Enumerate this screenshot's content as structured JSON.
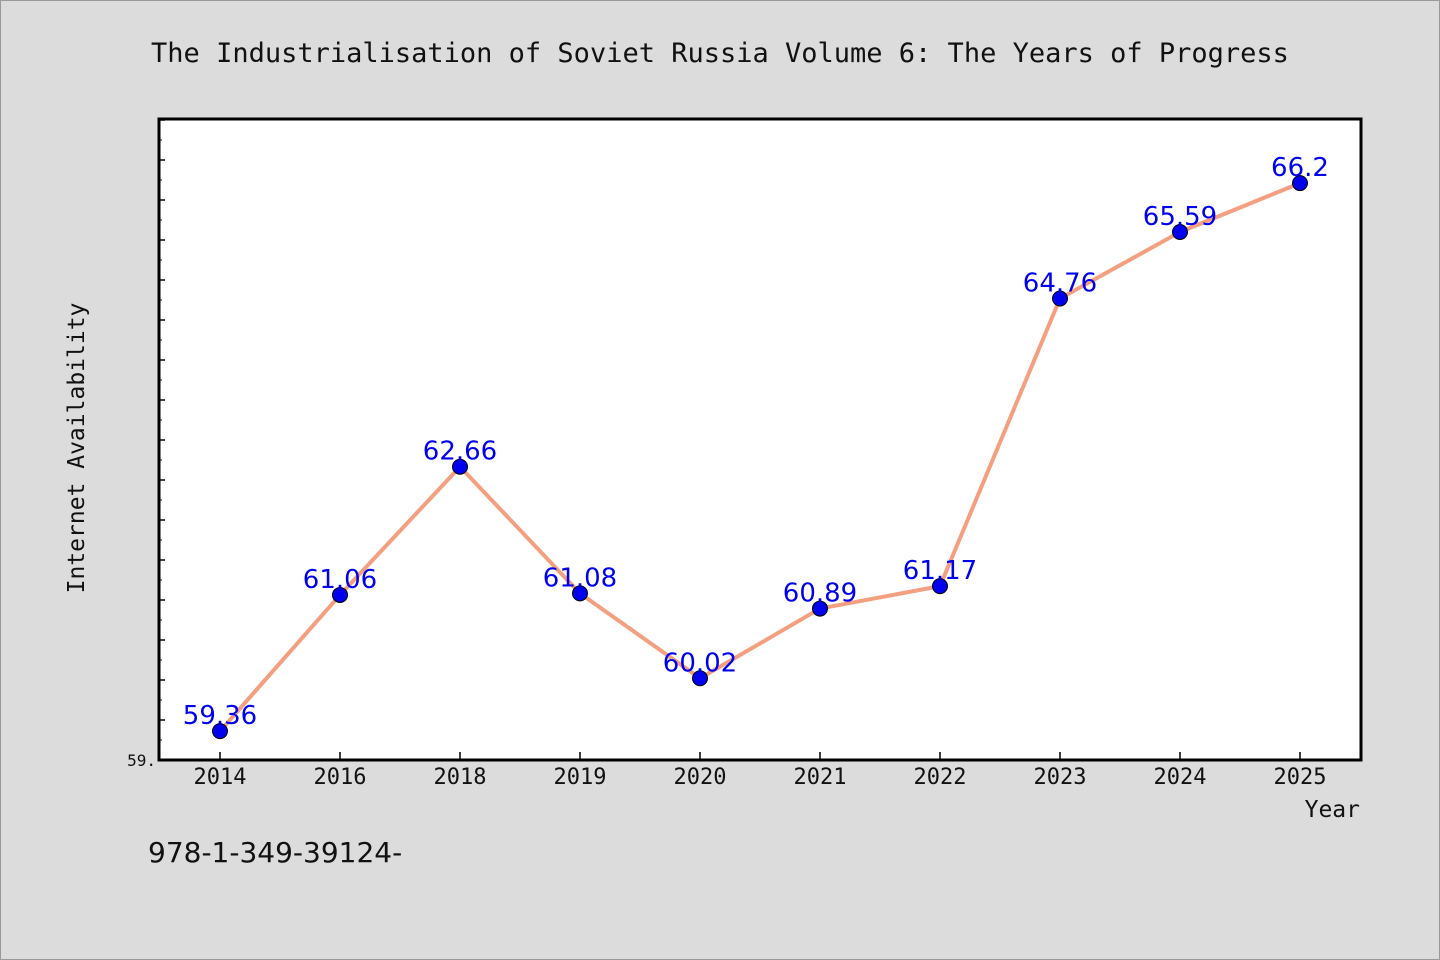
{
  "chart_data": {
    "type": "line",
    "title": "The Industrialisation of Soviet Russia Volume 6: The Years of Progress",
    "xlabel": "Year",
    "ylabel": "Internet Availability",
    "categories": [
      "2014",
      "2016",
      "2018",
      "2019",
      "2020",
      "2021",
      "2022",
      "2023",
      "2024",
      "2025"
    ],
    "series": [
      {
        "values": [
          59.36,
          61.06,
          62.66,
          61.08,
          60.02,
          60.89,
          61.17,
          64.76,
          65.59,
          66.2
        ],
        "labels": [
          "59.36",
          "61.06",
          "62.66",
          "61.08",
          "60.02",
          "60.89",
          "61.17",
          "64.76",
          "65.59",
          "66.2"
        ]
      }
    ],
    "y_tick_labels": [
      "59."
    ],
    "ylim": [
      59.0,
      67.0
    ],
    "grid": false,
    "legend": "none",
    "colors": {
      "line": "#f4a080",
      "marker": "#0000ee",
      "marker_edge": "#000000",
      "data_label": "#0000ee",
      "plot_background": "#ffffff",
      "figure_background": "#dcdcdc"
    }
  },
  "footer": {
    "text": "978-1-349-39124-"
  }
}
